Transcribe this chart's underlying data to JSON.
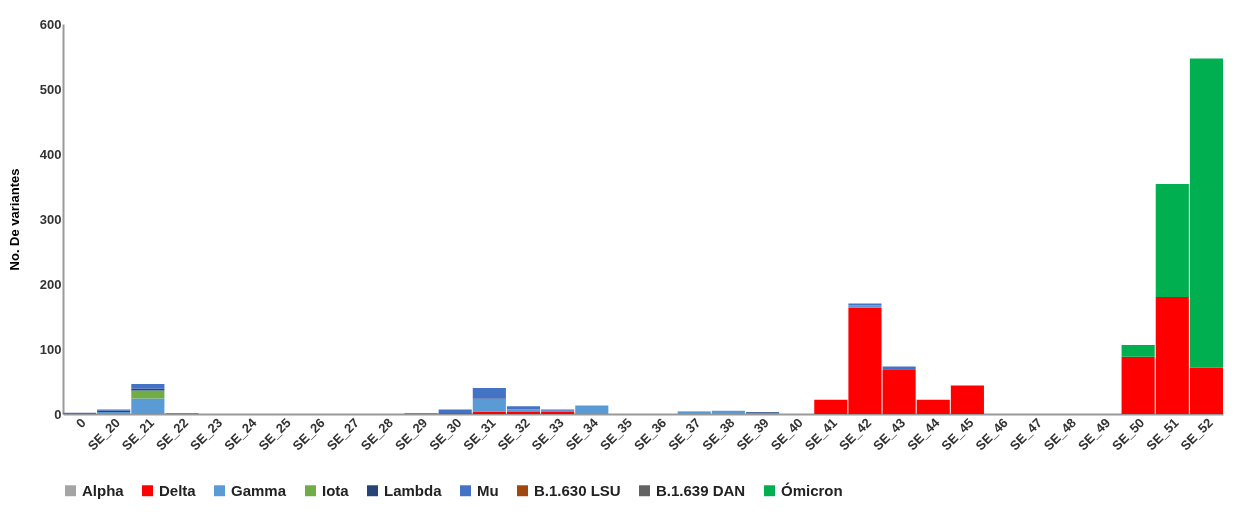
{
  "chart_data": {
    "type": "bar",
    "stacked": true,
    "ylabel": "No.  De variantes",
    "ylim": [
      0,
      600
    ],
    "yticks": [
      0,
      100,
      200,
      300,
      400,
      500,
      600
    ],
    "legend": "bottom",
    "categories": [
      "0",
      "SE_20",
      "SE_21",
      "SE_22",
      "SE_23",
      "SE_24",
      "SE_25",
      "SE_26",
      "SE_27",
      "SE_28",
      "SE_29",
      "SE_30",
      "SE_31",
      "SE_32",
      "SE_33",
      "SE_34",
      "SE_35",
      "SE_36",
      "SE_37",
      "SE_38",
      "SE_39",
      "SE_40",
      "SE_41",
      "SE_42",
      "SE_43",
      "SE_44",
      "SE_45",
      "SE_46",
      "SE_47",
      "SE_48",
      "SE_49",
      "SE_50",
      "SE_51",
      "SE_52"
    ],
    "series": [
      {
        "name": "Alpha",
        "color": "#a5a5a5",
        "values": [
          0,
          0,
          null,
          0,
          0,
          0,
          0,
          0,
          0,
          0,
          0,
          0,
          0,
          0,
          0,
          0,
          0,
          0,
          0,
          0,
          0,
          0,
          0,
          0,
          0,
          0,
          0,
          0,
          0,
          0,
          0,
          0,
          0,
          0
        ]
      },
      {
        "name": "Delta",
        "color": "#ff0000",
        "values": [
          0,
          0,
          0,
          0,
          0,
          0,
          0,
          0,
          0,
          0,
          0,
          0,
          4,
          3,
          3,
          0,
          0,
          0,
          0,
          0,
          0,
          0,
          22,
          164,
          69,
          22,
          44,
          0,
          0,
          0,
          0,
          88,
          180,
          71
        ]
      },
      {
        "name": "Gamma",
        "color": "#5b9bd5",
        "values": [
          0,
          3,
          24,
          0,
          0,
          0,
          0,
          0,
          0,
          0,
          0,
          0,
          19,
          4,
          2,
          13,
          0,
          0,
          3,
          5,
          2,
          0,
          0,
          3,
          0,
          0,
          0,
          0,
          0,
          0,
          0,
          0,
          0,
          0
        ]
      },
      {
        "name": "Iota",
        "color": "#70ad47",
        "values": [
          0,
          0,
          12,
          0,
          0,
          0,
          0,
          0,
          0,
          0,
          0,
          0,
          0,
          0,
          0,
          0,
          0,
          0,
          0,
          0,
          0,
          0,
          0,
          0,
          0,
          0,
          0,
          0,
          0,
          0,
          0,
          0,
          0,
          0
        ]
      },
      {
        "name": "Lambda",
        "color": "#264478",
        "values": [
          0,
          2,
          3,
          0,
          0,
          0,
          0,
          0,
          0,
          0,
          0,
          1,
          1,
          0,
          0,
          0,
          0,
          0,
          0,
          0,
          1,
          0,
          0,
          0,
          0,
          0,
          0,
          0,
          0,
          0,
          0,
          0,
          0,
          0
        ]
      },
      {
        "name": "Mu",
        "color": "#4472c4",
        "values": [
          2,
          2,
          7,
          1,
          0,
          0,
          0,
          0,
          0,
          0,
          1,
          6,
          16,
          5,
          2,
          0,
          0,
          0,
          1,
          0,
          0,
          0,
          0,
          3,
          4,
          0,
          0,
          0,
          0,
          0,
          0,
          0,
          0,
          0
        ]
      },
      {
        "name": "B.1.630 LSU",
        "color": "#9e480e",
        "values": [
          0,
          0,
          0,
          0,
          0,
          0,
          0,
          0,
          0,
          0,
          0,
          0,
          0,
          0,
          0,
          0,
          0,
          0,
          0,
          0,
          0,
          0,
          0,
          0,
          0,
          0,
          0,
          0,
          0,
          0,
          0,
          0,
          0,
          0
        ]
      },
      {
        "name": "B.1.639 DAN",
        "color": "#636363",
        "values": [
          0,
          0,
          0,
          0,
          0,
          0,
          0,
          0,
          0,
          0,
          0,
          0,
          0,
          0,
          0,
          0,
          0,
          0,
          0,
          0,
          0,
          0,
          0,
          0,
          0,
          0,
          0,
          0,
          0,
          0,
          0,
          0,
          0,
          0
        ]
      },
      {
        "name": "Ómicron",
        "color": "#00b050",
        "values": [
          0,
          0,
          0,
          0,
          0,
          0,
          0,
          0,
          0,
          0,
          0,
          0,
          0,
          0,
          0,
          0,
          0,
          0,
          0,
          0,
          0,
          0,
          0,
          0,
          0,
          0,
          0,
          0,
          0,
          0,
          0,
          18,
          174,
          476
        ]
      }
    ]
  }
}
